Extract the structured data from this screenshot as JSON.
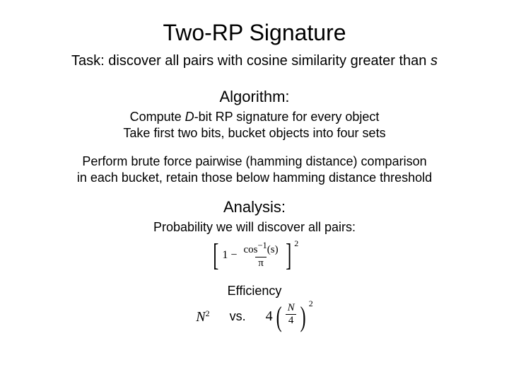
{
  "title": "Two-RP Signature",
  "task_prefix": "Task: discover all pairs with cosine similarity greater than ",
  "task_var": "s",
  "algorithm_head": "Algorithm:",
  "algo_line1a": "Compute ",
  "algo_var_D": "D",
  "algo_line1b": "-bit RP signature for every object",
  "algo_line2": "Take first two bits, bucket objects into four sets",
  "algo_para2_l1": "Perform brute force pairwise (hamming distance) comparison",
  "algo_para2_l2": "in each bucket, retain those below hamming distance threshold",
  "analysis_head": "Analysis:",
  "analysis_sub": "Probability we will discover all pairs:",
  "formula": {
    "one": "1",
    "minus": "−",
    "num_a": "cos",
    "num_sup": "−1",
    "num_arg": "(s)",
    "den": "π",
    "outer_exp": "2"
  },
  "efficiency_label": "Efficiency",
  "eff": {
    "left_base": "N",
    "left_exp": "2",
    "vs": "vs.",
    "right_coeff": "4",
    "right_num": "N",
    "right_den": "4",
    "right_exp": "2"
  },
  "colors": {
    "bg": "#ffffff",
    "text": "#000000"
  }
}
